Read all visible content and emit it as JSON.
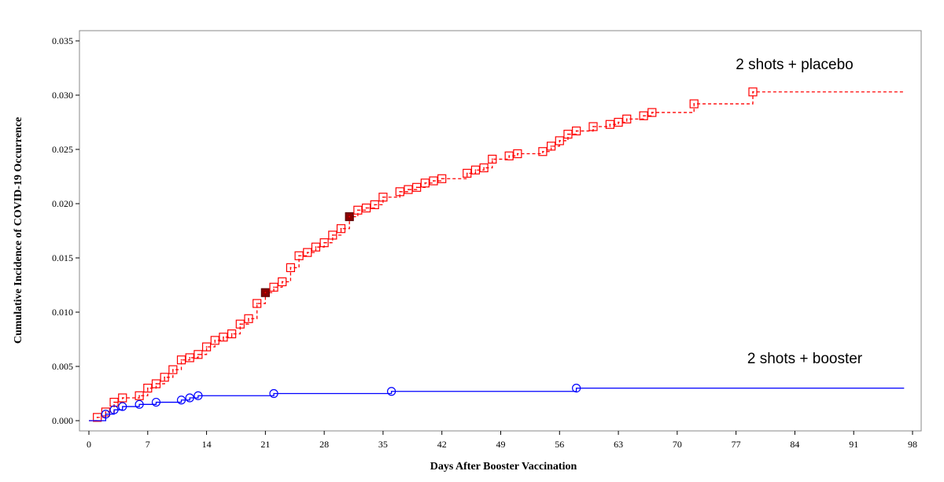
{
  "chart_data": {
    "type": "line",
    "title": "",
    "xlabel": "Days After Booster Vaccination",
    "ylabel": "Cumulative Incidence of COVID-19 Occurrence",
    "xlim": [
      0,
      98
    ],
    "ylim": [
      0,
      0.035
    ],
    "xticks": [
      "0",
      "7",
      "14",
      "21",
      "28",
      "35",
      "42",
      "49",
      "56",
      "63",
      "70",
      "77",
      "84",
      "91",
      "98"
    ],
    "yticks": [
      "0.000",
      "0.005",
      "0.010",
      "0.015",
      "0.020",
      "0.025",
      "0.030",
      "0.035"
    ],
    "grid": false,
    "legend": "none",
    "annotations": [
      {
        "text": "2 shots + placebo",
        "series": "placebo"
      },
      {
        "text": "2 shots + booster",
        "series": "booster"
      }
    ],
    "series": [
      {
        "key": "placebo",
        "color": "#ff0000",
        "line_style": "dashed",
        "marker": "square",
        "step": true,
        "end_x": 97,
        "x": [
          0,
          1,
          2,
          3,
          4,
          6,
          7,
          8,
          9,
          10,
          11,
          12,
          13,
          14,
          15,
          16,
          17,
          18,
          19,
          20,
          21,
          22,
          23,
          24,
          25,
          26,
          27,
          28,
          29,
          30,
          31,
          32,
          33,
          34,
          35,
          37,
          38,
          39,
          40,
          41,
          42,
          45,
          46,
          47,
          48,
          50,
          51,
          54,
          55,
          56,
          57,
          58,
          60,
          62,
          63,
          64,
          66,
          67,
          72,
          79
        ],
        "y": [
          0,
          0.0003,
          0.0008,
          0.0017,
          0.0021,
          0.0023,
          0.003,
          0.0034,
          0.004,
          0.0047,
          0.0056,
          0.0058,
          0.0061,
          0.0068,
          0.0074,
          0.0077,
          0.008,
          0.0089,
          0.0094,
          0.0108,
          0.0118,
          0.0123,
          0.0128,
          0.0141,
          0.0152,
          0.0155,
          0.016,
          0.0164,
          0.0171,
          0.0177,
          0.0188,
          0.0194,
          0.0196,
          0.0199,
          0.0206,
          0.0211,
          0.0213,
          0.0215,
          0.0219,
          0.0221,
          0.0223,
          0.0228,
          0.0231,
          0.0233,
          0.0241,
          0.0244,
          0.0246,
          0.0248,
          0.0253,
          0.0258,
          0.0264,
          0.0267,
          0.0271,
          0.0273,
          0.0275,
          0.0278,
          0.0281,
          0.0284,
          0.0292,
          0.0303
        ],
        "highlighted_x": [
          21,
          31
        ]
      },
      {
        "key": "booster",
        "color": "#0000ff",
        "line_style": "solid",
        "marker": "circle",
        "step": true,
        "end_x": 97,
        "x": [
          0,
          2,
          3,
          4,
          6,
          8,
          11,
          12,
          13,
          22,
          36,
          58
        ],
        "y": [
          0,
          0.0006,
          0.001,
          0.0013,
          0.0015,
          0.0017,
          0.0019,
          0.0021,
          0.0023,
          0.0025,
          0.0027,
          0.003
        ]
      }
    ]
  }
}
